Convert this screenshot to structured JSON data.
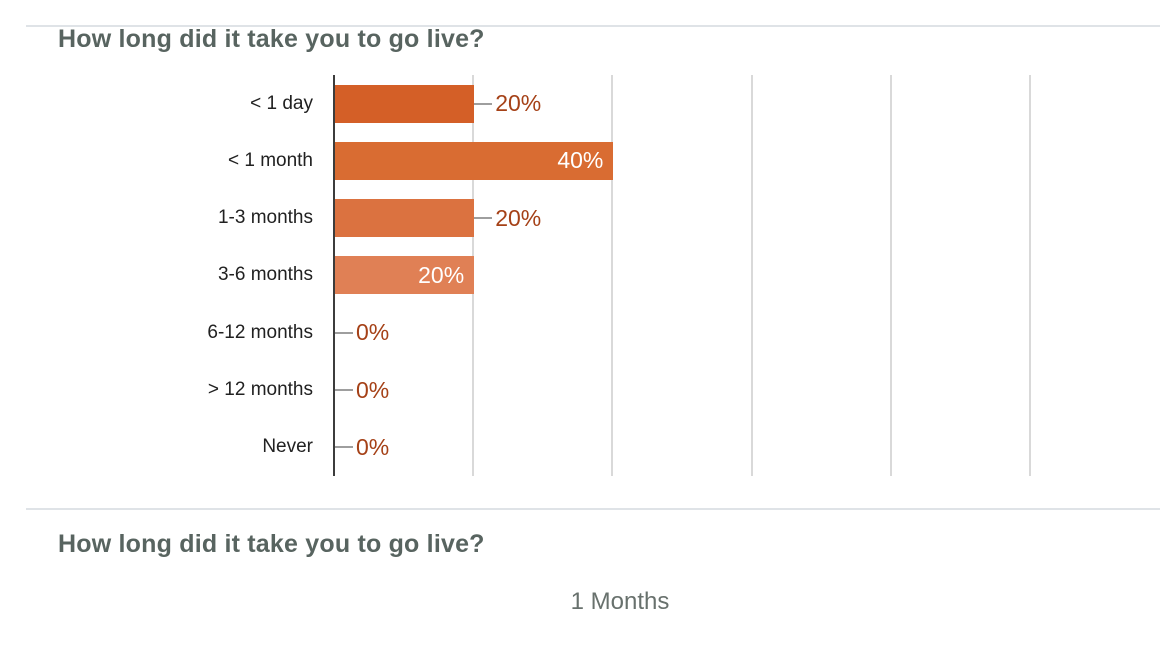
{
  "chart_section": {
    "title": "How long did it take you to go live?"
  },
  "chart_data": {
    "type": "bar",
    "orientation": "horizontal",
    "title": "How long did it take you to go live?",
    "categories": [
      "< 1 day",
      "< 1 month",
      "1-3 months",
      "3-6 months",
      "6-12 months",
      "> 12 months",
      "Never"
    ],
    "values": [
      20,
      40,
      20,
      20,
      0,
      0,
      0
    ],
    "value_labels": [
      "20%",
      "40%",
      "20%",
      "20%",
      "0%",
      "0%",
      "0%"
    ],
    "label_placement": [
      "outside",
      "inside",
      "outside",
      "inside",
      "outside",
      "outside",
      "outside"
    ],
    "bar_colors": [
      "#d45f27",
      "#d96c32",
      "#db7240",
      "#e08055",
      "#e28a62",
      "#e4956f",
      "#e79f7c"
    ],
    "xlabel": "",
    "ylabel": "",
    "xlim": [
      0,
      100
    ],
    "gridlines_pct": [
      20,
      40,
      60,
      80,
      100
    ],
    "grid": true,
    "legend": "none"
  },
  "footer_section": {
    "title": "How long did it take you to go live?",
    "subtitle": "1 Months"
  },
  "colors": {
    "title": "#586460",
    "category_label": "#212121",
    "value_label_outside": "#a54117",
    "value_label_inside": "#ffffff",
    "axis_line": "#3c3c3c",
    "gridline": "#d9d9d9",
    "leader_line": "#9e9e9e",
    "divider": "#dfe3e7",
    "subtitle": "#68716d"
  }
}
